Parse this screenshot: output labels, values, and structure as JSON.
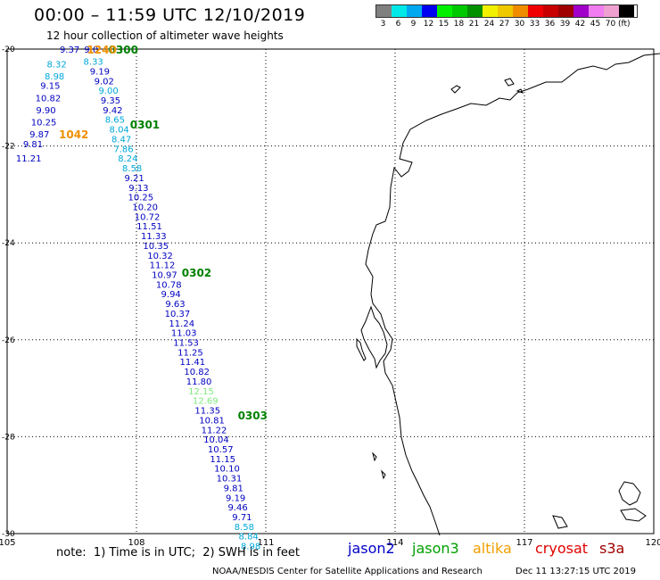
{
  "header": {
    "title": "00:00 – 11:59 UTC 12/10/2019",
    "subtitle": "12 hour collection of altimeter wave heights"
  },
  "color_scale": {
    "colors": [
      "#808080",
      "#00e8e8",
      "#00a8f0",
      "#0000f0",
      "#00f000",
      "#00c800",
      "#009000",
      "#f0f000",
      "#f0c800",
      "#f08c00",
      "#f00000",
      "#c80000",
      "#a00000",
      "#a000c8",
      "#f07cf0",
      "#f0a0d0",
      "#000000"
    ],
    "labels": [
      "3",
      "6",
      "9",
      "12",
      "15",
      "18",
      "21",
      "24",
      "27",
      "30",
      "33",
      "36",
      "39",
      "42",
      "45",
      "70"
    ],
    "unit": "(ft)"
  },
  "map": {
    "lon_ticks": [
      "105",
      "108",
      "111",
      "114",
      "117",
      "120"
    ],
    "lat_ticks": [
      "-20",
      "-22",
      "-24",
      "-26",
      "-28",
      "-30"
    ]
  },
  "tracks": [
    {
      "lon": 106.45,
      "lat": -20.0,
      "value": "9.37",
      "color": "#0000c0"
    },
    {
      "lon": 106.95,
      "lat": -20.0,
      "value": "9.0",
      "color": "#0000c0"
    },
    {
      "lon": 106.15,
      "lat": -20.3,
      "value": "8.32",
      "color": "#00a8d8"
    },
    {
      "lon": 107.0,
      "lat": -20.25,
      "value": "8.33",
      "color": "#00a8d8"
    },
    {
      "lon": 106.1,
      "lat": -20.55,
      "value": "8.98",
      "color": "#00a8d8"
    },
    {
      "lon": 107.15,
      "lat": -20.45,
      "value": "9.19",
      "color": "#0000c0"
    },
    {
      "lon": 106.0,
      "lat": -20.75,
      "value": "9.15",
      "color": "#0000c0"
    },
    {
      "lon": 107.25,
      "lat": -20.65,
      "value": "9.02",
      "color": "#0000c0"
    },
    {
      "lon": 105.95,
      "lat": -21.0,
      "value": "10.82",
      "color": "#0000c0"
    },
    {
      "lon": 107.35,
      "lat": -20.85,
      "value": "9.00",
      "color": "#00a8d8"
    },
    {
      "lon": 105.9,
      "lat": -21.25,
      "value": "9.90",
      "color": "#0000c0"
    },
    {
      "lon": 107.4,
      "lat": -21.05,
      "value": "9.35",
      "color": "#0000c0"
    },
    {
      "lon": 105.85,
      "lat": -21.5,
      "value": "10.25",
      "color": "#0000c0"
    },
    {
      "lon": 107.45,
      "lat": -21.25,
      "value": "9.42",
      "color": "#0000c0"
    },
    {
      "lon": 105.75,
      "lat": -21.75,
      "value": "9.87",
      "color": "#0000c0"
    },
    {
      "lon": 107.5,
      "lat": -21.45,
      "value": "8.65",
      "color": "#00a8d8"
    },
    {
      "lon": 105.6,
      "lat": -21.95,
      "value": "9.81",
      "color": "#0000c0"
    },
    {
      "lon": 107.6,
      "lat": -21.65,
      "value": "8.04",
      "color": "#00a8d8"
    },
    {
      "lon": 105.5,
      "lat": -22.25,
      "value": "11.21",
      "color": "#0000c0"
    },
    {
      "lon": 107.65,
      "lat": -21.85,
      "value": "8.47",
      "color": "#00a8d8"
    },
    {
      "lon": 107.7,
      "lat": -22.05,
      "value": "7.86",
      "color": "#00a8d8"
    },
    {
      "lon": 107.8,
      "lat": -22.25,
      "value": "8.24",
      "color": "#00a8d8"
    },
    {
      "lon": 107.9,
      "lat": -22.45,
      "value": "8.58",
      "color": "#00a8d8"
    },
    {
      "lon": 107.95,
      "lat": -22.65,
      "value": "9.21",
      "color": "#0000c0"
    },
    {
      "lon": 108.05,
      "lat": -22.85,
      "value": "9.13",
      "color": "#0000c0"
    },
    {
      "lon": 108.1,
      "lat": -23.05,
      "value": "10.25",
      "color": "#0000c0"
    },
    {
      "lon": 108.2,
      "lat": -23.25,
      "value": "10.20",
      "color": "#0000c0"
    },
    {
      "lon": 108.25,
      "lat": -23.45,
      "value": "10.72",
      "color": "#0000c0"
    },
    {
      "lon": 108.3,
      "lat": -23.65,
      "value": "11.51",
      "color": "#0000c0"
    },
    {
      "lon": 108.4,
      "lat": -23.85,
      "value": "11.33",
      "color": "#0000c0"
    },
    {
      "lon": 108.45,
      "lat": -24.05,
      "value": "10.35",
      "color": "#0000c0"
    },
    {
      "lon": 108.55,
      "lat": -24.25,
      "value": "10.32",
      "color": "#0000c0"
    },
    {
      "lon": 108.6,
      "lat": -24.45,
      "value": "11.12",
      "color": "#0000c0"
    },
    {
      "lon": 108.65,
      "lat": -24.65,
      "value": "10.97",
      "color": "#0000c0"
    },
    {
      "lon": 108.75,
      "lat": -24.85,
      "value": "10.78",
      "color": "#0000c0"
    },
    {
      "lon": 108.8,
      "lat": -25.05,
      "value": "9.94",
      "color": "#0000c0"
    },
    {
      "lon": 108.9,
      "lat": -25.25,
      "value": "9.63",
      "color": "#0000c0"
    },
    {
      "lon": 108.95,
      "lat": -25.45,
      "value": "10.37",
      "color": "#0000c0"
    },
    {
      "lon": 109.05,
      "lat": -25.65,
      "value": "11.24",
      "color": "#0000c0"
    },
    {
      "lon": 109.1,
      "lat": -25.85,
      "value": "11.03",
      "color": "#0000c0"
    },
    {
      "lon": 109.15,
      "lat": -26.05,
      "value": "11.53",
      "color": "#0000c0"
    },
    {
      "lon": 109.25,
      "lat": -26.25,
      "value": "11.25",
      "color": "#0000c0"
    },
    {
      "lon": 109.3,
      "lat": -26.45,
      "value": "11.41",
      "color": "#0000c0"
    },
    {
      "lon": 109.4,
      "lat": -26.65,
      "value": "10.82",
      "color": "#0000c0"
    },
    {
      "lon": 109.45,
      "lat": -26.85,
      "value": "11.80",
      "color": "#0000c0"
    },
    {
      "lon": 109.5,
      "lat": -27.05,
      "value": "12.15",
      "color": "#80e880"
    },
    {
      "lon": 109.6,
      "lat": -27.25,
      "value": "12.69",
      "color": "#80e880"
    },
    {
      "lon": 109.65,
      "lat": -27.45,
      "value": "11.35",
      "color": "#0000c0"
    },
    {
      "lon": 109.75,
      "lat": -27.65,
      "value": "10.81",
      "color": "#0000c0"
    },
    {
      "lon": 109.8,
      "lat": -27.85,
      "value": "11.22",
      "color": "#0000c0"
    },
    {
      "lon": 109.85,
      "lat": -28.05,
      "value": "10.04",
      "color": "#0000c0"
    },
    {
      "lon": 109.95,
      "lat": -28.25,
      "value": "10.57",
      "color": "#0000c0"
    },
    {
      "lon": 110.0,
      "lat": -28.45,
      "value": "11.15",
      "color": "#0000c0"
    },
    {
      "lon": 110.1,
      "lat": -28.65,
      "value": "10.10",
      "color": "#0000c0"
    },
    {
      "lon": 110.15,
      "lat": -28.85,
      "value": "10.31",
      "color": "#0000c0"
    },
    {
      "lon": 110.25,
      "lat": -29.05,
      "value": "9.81",
      "color": "#0000c0"
    },
    {
      "lon": 110.3,
      "lat": -29.25,
      "value": "9.19",
      "color": "#0000c0"
    },
    {
      "lon": 110.35,
      "lat": -29.45,
      "value": "9.46",
      "color": "#0000c0"
    },
    {
      "lon": 110.45,
      "lat": -29.65,
      "value": "9.71",
      "color": "#0000c0"
    },
    {
      "lon": 110.5,
      "lat": -29.85,
      "value": "8.58",
      "color": "#00a8d8"
    },
    {
      "lon": 110.6,
      "lat": -30.05,
      "value": "8.84",
      "color": "#00a8d8"
    },
    {
      "lon": 110.65,
      "lat": -30.25,
      "value": "8.98",
      "color": "#00a8d8"
    }
  ],
  "time_labels": [
    {
      "lon": 107.35,
      "lat": -20.0,
      "text": "0300",
      "color": "#008000"
    },
    {
      "lon": 106.85,
      "lat": -20.0,
      "text": "1240",
      "color": "#f09000"
    },
    {
      "lon": 107.85,
      "lat": -21.55,
      "text": "0301",
      "color": "#008000"
    },
    {
      "lon": 106.2,
      "lat": -21.75,
      "text": "1042",
      "color": "#f09000"
    },
    {
      "lon": 109.05,
      "lat": -24.6,
      "text": "0302",
      "color": "#008000"
    },
    {
      "lon": 110.35,
      "lat": -27.55,
      "text": "0303",
      "color": "#008000"
    }
  ],
  "footer": {
    "note": "note:  1) Time is in UTC;  2) SWH is in feet",
    "legend": [
      {
        "label": "jason2",
        "color": "#0000c8"
      },
      {
        "label": "jason3",
        "color": "#00a000"
      },
      {
        "label": "altika",
        "color": "#f0a000"
      },
      {
        "label": "cryosat",
        "color": "#e00000"
      },
      {
        "label": "s3a",
        "color": "#a00000"
      }
    ],
    "credit": "NOAA/NESDIS Center for Satellite Applications and Research",
    "timestamp": "Dec 11 13:27:15 UTC 2019"
  }
}
